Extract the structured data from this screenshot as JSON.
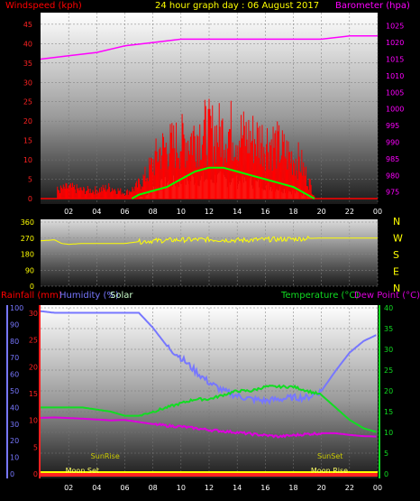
{
  "header": {
    "title": "24 hour graph day : 06 August 2017",
    "wind_label": "Windspeed (kph)",
    "baro_label": "Barometer (hpa)",
    "rain_label": "Rainfall (mm)",
    "hum_label": "Humidity (%)",
    "solar_label": "Solar",
    "temp_label": "Temperature (°C)",
    "dew_label": "Dew Point (°C)",
    "sunrise_label": "SunRise",
    "sunset_label": "SunSet",
    "moonset_label": "Moon Set",
    "moonrise_label": "Moon Rise"
  },
  "colors": {
    "wind": "#ff0000",
    "gust_avg": "#00ff00",
    "solar": "#ccffcc",
    "baro": "#ff00ff",
    "dir": "#ffff00",
    "humidity": "#7777ff",
    "temp": "#11dd22",
    "dew": "#dd00dd",
    "sun": "#cccc00"
  },
  "chart_data": [
    {
      "type": "area",
      "title": "Windspeed / Barometer",
      "x_tick_labels": [
        "02",
        "04",
        "06",
        "08",
        "10",
        "12",
        "14",
        "16",
        "18",
        "20",
        "22",
        "00"
      ],
      "y_left_ticks": [
        "0",
        "5",
        "10",
        "15",
        "20",
        "25",
        "30",
        "35",
        "40",
        "45"
      ],
      "y_right_ticks": [
        "975",
        "980",
        "985",
        "990",
        "995",
        "1000",
        "1005",
        "1010",
        "1015",
        "1020",
        "1025"
      ],
      "ylim_left": [
        0,
        48
      ],
      "ylim_right": [
        973,
        1029
      ],
      "wind_gust": {
        "x": [
          1.2,
          2,
          3,
          4,
          5,
          6,
          6.8,
          7.5,
          8.5,
          9.5,
          10.5,
          11.5,
          12.5,
          13.5,
          14.5,
          15.5,
          16.5,
          17.5,
          18.5,
          19.2,
          19.5
        ],
        "y": [
          3,
          4,
          3,
          3,
          4,
          2,
          4,
          8,
          17,
          19,
          21,
          24,
          23,
          24,
          22,
          21,
          20,
          16,
          13,
          5,
          1
        ]
      },
      "wind_avg": {
        "x": [
          6.5,
          7,
          8,
          9,
          10,
          11,
          12,
          13,
          14,
          15,
          16,
          17,
          18,
          19,
          19.5
        ],
        "y": [
          0,
          1,
          2,
          3,
          5,
          7,
          8,
          8,
          7,
          6,
          5,
          4,
          3,
          1,
          0
        ]
      },
      "solar": {
        "x": [
          6.8,
          7.5,
          8,
          9,
          10,
          11,
          12,
          13,
          14,
          15,
          16,
          17,
          18,
          19,
          19.5
        ],
        "y": [
          0,
          1,
          3,
          5,
          5,
          6,
          6,
          6,
          5,
          5,
          4,
          3,
          2,
          1,
          0
        ]
      },
      "barometer": {
        "x": [
          0,
          2,
          4,
          6,
          8,
          10,
          12,
          14,
          16,
          18,
          20,
          22,
          24
        ],
        "y": [
          1015,
          1016,
          1017,
          1019,
          1020,
          1021,
          1021,
          1021,
          1021,
          1021,
          1021,
          1022,
          1022
        ]
      }
    },
    {
      "type": "line",
      "title": "Wind Direction",
      "y_left_ticks": [
        "0",
        "90",
        "180",
        "270",
        "360"
      ],
      "y_right_labels": [
        "N",
        "W",
        "S",
        "E",
        "N"
      ],
      "ylim": [
        0,
        360
      ],
      "direction": {
        "x": [
          0,
          1,
          1.5,
          2,
          3,
          4,
          5,
          6,
          7,
          8,
          10,
          12,
          14,
          16,
          18,
          19,
          20,
          22,
          24
        ],
        "y": [
          255,
          260,
          240,
          235,
          240,
          240,
          240,
          240,
          250,
          255,
          260,
          262,
          258,
          262,
          265,
          268,
          270,
          270,
          270
        ]
      }
    },
    {
      "type": "line",
      "title": "Rain / Humidity / Temperature / Dew Point",
      "x_tick_labels": [
        "02",
        "04",
        "06",
        "08",
        "10",
        "12",
        "14",
        "16",
        "18",
        "20",
        "22",
        "00"
      ],
      "y_left_outer_ticks": [
        "0",
        "10",
        "20",
        "30",
        "40",
        "50",
        "60",
        "70",
        "80",
        "90",
        "100"
      ],
      "y_left_inner_ticks": [
        "0",
        "5",
        "10",
        "15",
        "20",
        "25",
        "30"
      ],
      "y_right_ticks": [
        "0",
        "5",
        "10",
        "15",
        "20",
        "25",
        "30",
        "35",
        "40"
      ],
      "ylim_humidity": [
        0,
        100
      ],
      "ylim_temp": [
        0,
        40
      ],
      "ylim_rain": [
        0,
        31
      ],
      "humidity": {
        "x": [
          0,
          1,
          3,
          5,
          7,
          8,
          9,
          10,
          11,
          12,
          13,
          14,
          15,
          16,
          17,
          18,
          19,
          20,
          21,
          22,
          23,
          24
        ],
        "y": [
          98,
          97,
          97,
          97,
          97,
          88,
          77,
          70,
          62,
          55,
          50,
          47,
          45,
          44,
          45,
          46,
          46,
          50,
          62,
          73,
          80,
          84
        ]
      },
      "temperature": {
        "x": [
          0,
          1,
          3,
          5,
          6,
          7,
          8,
          9,
          10,
          11,
          12,
          13,
          14,
          15,
          16,
          17,
          18,
          19,
          20,
          21,
          22,
          23,
          24
        ],
        "y": [
          16,
          16,
          16,
          15,
          14,
          14,
          15,
          16,
          17,
          18,
          18,
          19,
          20,
          20,
          21,
          21,
          21,
          20,
          19,
          16,
          13,
          11,
          10
        ]
      },
      "dew_point": {
        "x": [
          0,
          1,
          3,
          5,
          6,
          7,
          8,
          9,
          10,
          11,
          12,
          13,
          14,
          15,
          16,
          17,
          18,
          19,
          20,
          21,
          22,
          23,
          24
        ],
        "y": [
          13.5,
          13.6,
          13.3,
          12.9,
          13.0,
          12.5,
          12.0,
          11.6,
          11.4,
          11.0,
          10.6,
          10.3,
          10.0,
          9.6,
          9.3,
          9.0,
          9.3,
          9.6,
          9.8,
          9.8,
          9.4,
          9.1,
          9.0
        ]
      },
      "rainfall": {
        "x": [
          0,
          24
        ],
        "y": [
          0,
          0
        ]
      },
      "sunrise_x": 4.6,
      "sunset_x": 20.6,
      "moonset_x": 2.8,
      "moonrise_x": 20.4
    }
  ]
}
